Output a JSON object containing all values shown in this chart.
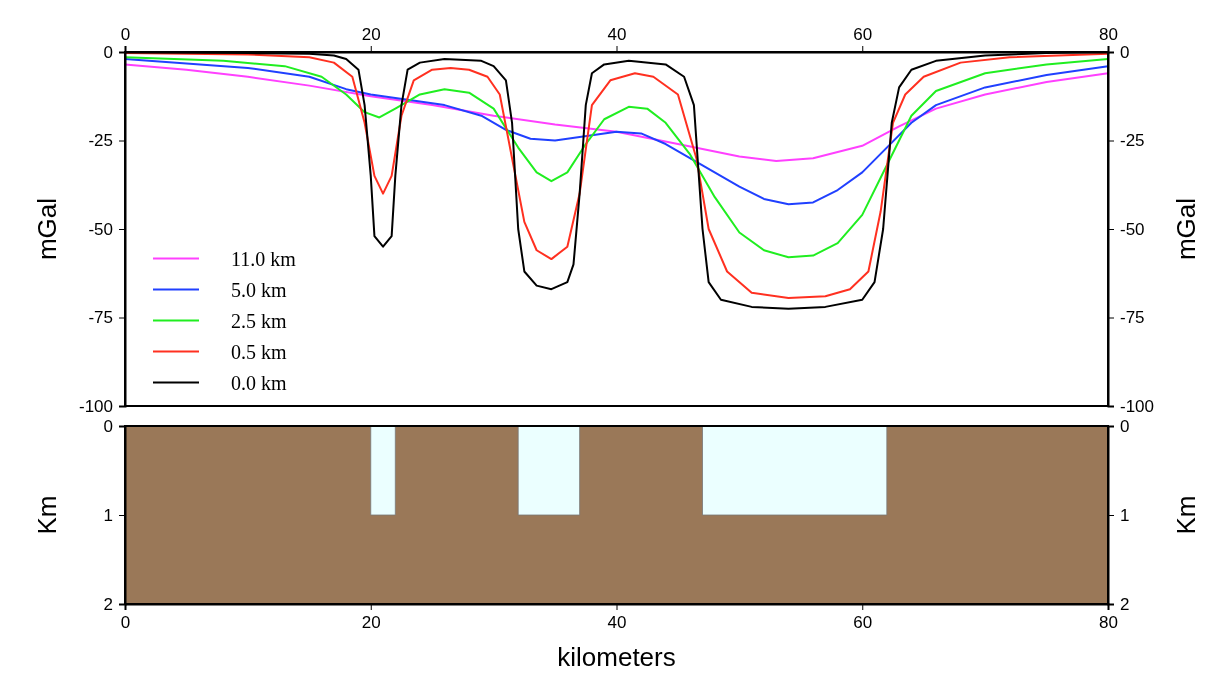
{
  "chart_data": [
    {
      "type": "line",
      "ylabel": "mGal",
      "y2label": "mGal",
      "xlim": [
        0,
        80
      ],
      "xticks": [
        0,
        20,
        40,
        60,
        80
      ],
      "ylim": [
        -100,
        0
      ],
      "yticks": [
        -100,
        -75,
        -50,
        -25,
        0
      ],
      "y2lim": [
        -100,
        0
      ],
      "y2ticks": [
        -100,
        -75,
        -50,
        -25,
        0
      ],
      "legend": "bottom left",
      "series": [
        {
          "name": "11.0 km",
          "color": "#ff40ff",
          "x": [
            0,
            5,
            10,
            15,
            20,
            25,
            30,
            35,
            40,
            45,
            50,
            53,
            56,
            60,
            63,
            66,
            70,
            75,
            80
          ],
          "values": [
            -3.5,
            -5,
            -7,
            -9.5,
            -12.5,
            -15,
            -18,
            -20.5,
            -22.5,
            -26,
            -29.5,
            -30.8,
            -30,
            -26.5,
            -21,
            -16,
            -12,
            -8.5,
            -6
          ]
        },
        {
          "name": "5.0 km",
          "color": "#2040ff",
          "x": [
            0,
            10,
            15,
            18,
            20,
            23,
            26,
            29,
            31,
            33,
            35,
            37,
            40,
            42,
            44,
            47,
            50,
            52,
            54,
            56,
            58,
            60,
            62,
            64,
            66,
            70,
            75,
            80
          ],
          "values": [
            -2,
            -4.5,
            -7,
            -10.5,
            -12,
            -13.5,
            -15,
            -18,
            -22,
            -24.5,
            -25,
            -24,
            -22.5,
            -23,
            -26,
            -32,
            -38,
            -41.5,
            -43,
            -42.5,
            -39,
            -34,
            -27,
            -20,
            -15,
            -10,
            -6.5,
            -4
          ]
        },
        {
          "name": "2.5 km",
          "color": "#20ee20",
          "x": [
            0,
            8,
            13,
            16,
            18,
            19.5,
            20.7,
            22,
            24,
            26,
            28,
            30,
            32,
            33.5,
            34.7,
            36,
            37.5,
            39,
            41,
            42.5,
            44,
            46,
            48,
            50,
            52,
            54,
            56,
            58,
            60,
            62,
            64,
            66,
            70,
            75,
            80
          ],
          "values": [
            -1.5,
            -2.5,
            -4,
            -7,
            -12,
            -17,
            -18.5,
            -16,
            -12,
            -10.5,
            -11.5,
            -16,
            -27,
            -34,
            -36.5,
            -34,
            -26,
            -19,
            -15.5,
            -16,
            -20,
            -29,
            -41,
            -51,
            -56,
            -58,
            -57.5,
            -54,
            -46,
            -32,
            -18,
            -11,
            -6,
            -3.5,
            -2
          ]
        },
        {
          "name": "0.5 km",
          "color": "#ff3020",
          "x": [
            0,
            10,
            15,
            17,
            18.5,
            19.5,
            20.3,
            21,
            21.7,
            22.5,
            23.5,
            25,
            26.5,
            28,
            29.5,
            30.5,
            31.5,
            32.5,
            33.5,
            34.7,
            36,
            37,
            38,
            39.5,
            41.5,
            43,
            45,
            46.5,
            47.5,
            49,
            51,
            54,
            57,
            59,
            60.5,
            61.5,
            62.5,
            63.5,
            65,
            68,
            72,
            80
          ],
          "values": [
            -0.3,
            -0.7,
            -1.5,
            -3,
            -7,
            -20,
            -35,
            -40,
            -35,
            -18,
            -8,
            -5,
            -4.5,
            -5,
            -7,
            -12,
            -30,
            -48,
            -56,
            -58.5,
            -55,
            -40,
            -15,
            -8,
            -6,
            -7,
            -12,
            -30,
            -50,
            -62,
            -68,
            -69.5,
            -69,
            -67,
            -62,
            -45,
            -20,
            -12,
            -7,
            -3,
            -1.5,
            -0.5
          ]
        },
        {
          "name": "0.0 km",
          "color": "#000000",
          "x": [
            0,
            10,
            15,
            17,
            18,
            19,
            19.5,
            20,
            20.3,
            21,
            21.7,
            22,
            22.5,
            23,
            24,
            26,
            29,
            30,
            31,
            31.5,
            32,
            32.5,
            33.5,
            34.7,
            36,
            36.5,
            37,
            37.5,
            38,
            39,
            41,
            44,
            45.5,
            46.3,
            47,
            47.5,
            48.5,
            51,
            54,
            57,
            60,
            61,
            61.7,
            62.4,
            63,
            64,
            66,
            70,
            75,
            80
          ],
          "values": [
            0,
            -0.3,
            -0.5,
            -1,
            -2,
            -5,
            -15,
            -35,
            -52,
            -55,
            -52,
            -35,
            -15,
            -5,
            -3,
            -2,
            -2.5,
            -4,
            -8,
            -20,
            -50,
            -62,
            -66,
            -67,
            -65,
            -60,
            -40,
            -15,
            -6,
            -3.5,
            -2.5,
            -3.5,
            -7,
            -15,
            -50,
            -65,
            -70,
            -72,
            -72.5,
            -72,
            -70,
            -65,
            -50,
            -20,
            -10,
            -5,
            -2.5,
            -1,
            -0.3,
            0
          ]
        }
      ]
    },
    {
      "type": "area",
      "xlabel": "kilometers",
      "ylabel": "Km",
      "y2label": "Km",
      "xlim": [
        0,
        80
      ],
      "xticks": [
        0,
        20,
        40,
        60,
        80
      ],
      "ylim": [
        2,
        0
      ],
      "yticks": [
        0,
        1,
        2
      ],
      "y2lim": [
        2,
        0
      ],
      "y2ticks": [
        0,
        1,
        2
      ],
      "series": [
        {
          "color": "#ebffff",
          "x": [
            0,
            20,
            20,
            22,
            22,
            32,
            32,
            37,
            37,
            47,
            47,
            62,
            62,
            80
          ],
          "values": [
            0,
            0,
            1,
            1,
            0,
            0,
            1,
            1,
            0,
            0,
            1,
            1,
            0,
            0
          ]
        }
      ]
    }
  ]
}
